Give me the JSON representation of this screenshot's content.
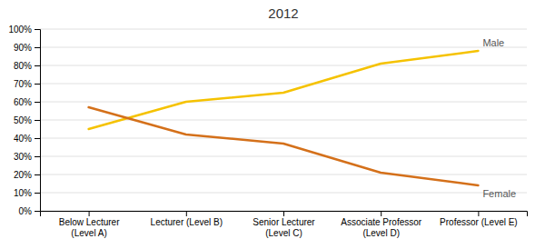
{
  "chart_data": {
    "type": "line",
    "title": "2012",
    "categories": [
      "Below Lecturer\n(Level A)",
      "Lecturer (Level B)",
      "Senior Lecturer\n(Level C)",
      "Associate Professor\n(Level D)",
      "Professor (Level E)"
    ],
    "series": [
      {
        "name": "Male",
        "color": "#F5C200",
        "values": [
          45,
          60,
          65,
          81,
          88
        ]
      },
      {
        "name": "Female",
        "color": "#D4701A",
        "values": [
          57,
          42,
          37,
          21,
          14
        ]
      }
    ],
    "ylim": [
      0,
      100
    ],
    "yticks": [
      {
        "value": 0,
        "label": "0%"
      },
      {
        "value": 10,
        "label": "10%"
      },
      {
        "value": 20,
        "label": "20%"
      },
      {
        "value": 30,
        "label": "30%"
      },
      {
        "value": 40,
        "label": "40%"
      },
      {
        "value": 50,
        "label": "50%"
      },
      {
        "value": 60,
        "label": "60%"
      },
      {
        "value": 70,
        "label": "70%"
      },
      {
        "value": 80,
        "label": "80%"
      },
      {
        "value": 90,
        "label": "90%"
      },
      {
        "value": 100,
        "label": "100%"
      }
    ],
    "grid": true
  }
}
